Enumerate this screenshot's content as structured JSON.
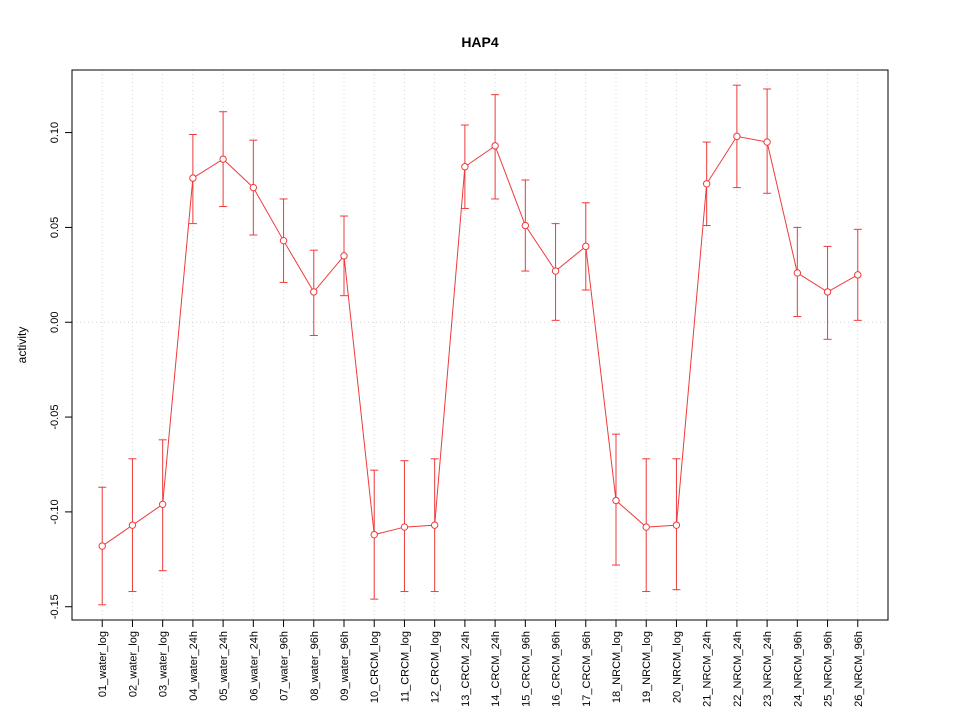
{
  "chart_data": {
    "type": "line",
    "title": "HAP4",
    "xlabel": "",
    "ylabel": "activity",
    "legend": "none",
    "grid": {
      "vertical_dotted": true,
      "zero_line_dotted": true,
      "color": "#d4d4d4"
    },
    "point_style": "open-circle",
    "ylim": [
      -0.157,
      0.133
    ],
    "yticks": [
      -0.15,
      -0.1,
      -0.05,
      0.0,
      0.05,
      0.1
    ],
    "ytick_labels": [
      "-0.15",
      "-0.10",
      "-0.05",
      "0.00",
      "0.05",
      "0.10"
    ],
    "categories": [
      "01_water_log",
      "02_water_log",
      "03_water_log",
      "04_water_24h",
      "05_water_24h",
      "06_water_24h",
      "07_water_96h",
      "08_water_96h",
      "09_water_96h",
      "10_CRCM_log",
      "11_CRCM_log",
      "12_CRCM_log",
      "13_CRCM_24h",
      "14_CRCM_24h",
      "15_CRCM_96h",
      "16_CRCM_96h",
      "17_CRCM_96h",
      "18_NRCM_log",
      "19_NRCM_log",
      "20_NRCM_log",
      "21_NRCM_24h",
      "22_NRCM_24h",
      "23_NRCM_24h",
      "24_NRCM_96h",
      "25_NRCM_96h",
      "26_NRCM_96h"
    ],
    "series": [
      {
        "name": "HAP4",
        "color": "#ee3b3b",
        "values": [
          -0.118,
          -0.107,
          -0.096,
          0.076,
          0.086,
          0.071,
          0.043,
          0.016,
          0.035,
          -0.112,
          -0.108,
          -0.107,
          0.082,
          0.093,
          0.051,
          0.027,
          0.04,
          -0.094,
          -0.108,
          -0.107,
          0.073,
          0.098,
          0.095,
          0.026,
          0.016,
          0.025
        ],
        "error_low": [
          -0.149,
          -0.142,
          -0.131,
          0.052,
          0.061,
          0.046,
          0.021,
          -0.007,
          0.014,
          -0.146,
          -0.142,
          -0.142,
          0.06,
          0.065,
          0.027,
          0.001,
          0.017,
          -0.128,
          -0.142,
          -0.141,
          0.051,
          0.071,
          0.068,
          0.003,
          -0.009,
          0.001
        ],
        "error_high": [
          -0.087,
          -0.072,
          -0.062,
          0.099,
          0.111,
          0.096,
          0.065,
          0.038,
          0.056,
          -0.078,
          -0.073,
          -0.072,
          0.104,
          0.12,
          0.075,
          0.052,
          0.063,
          -0.059,
          -0.072,
          -0.072,
          0.095,
          0.125,
          0.123,
          0.05,
          0.04,
          0.049
        ]
      }
    ]
  }
}
